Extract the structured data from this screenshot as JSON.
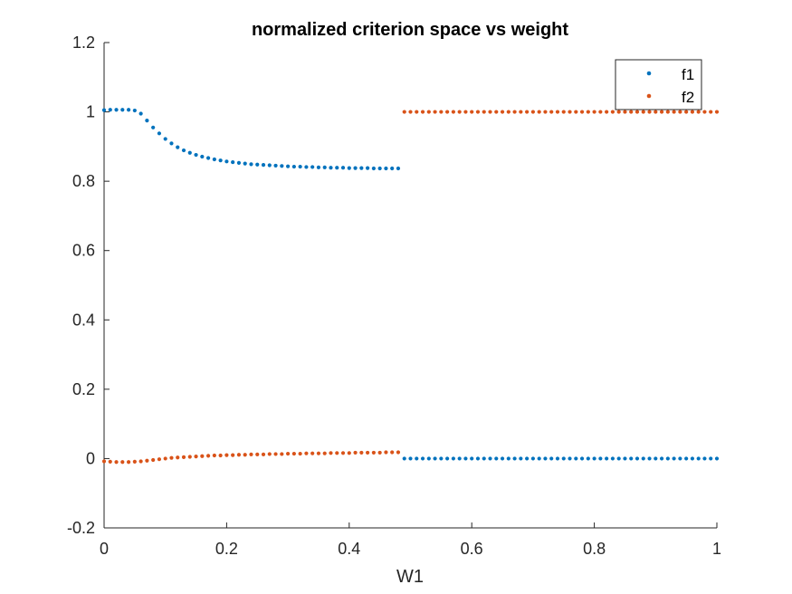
{
  "chart_data": {
    "type": "scatter",
    "title": "normalized criterion space vs weight",
    "xlabel": "W1",
    "ylabel": "",
    "xlim": [
      0,
      1
    ],
    "ylim": [
      -0.2,
      1.2
    ],
    "xticks": [
      "0",
      "0.2",
      "0.4",
      "0.6",
      "0.8",
      "1"
    ],
    "yticks": [
      "-0.2",
      "0",
      "0.2",
      "0.4",
      "0.6",
      "0.8",
      "1",
      "1.2"
    ],
    "grid": false,
    "legend_position": "top-right",
    "series": [
      {
        "name": "f1",
        "color": "#0072BD",
        "points": [
          [
            0.0,
            1.005
          ],
          [
            0.01,
            1.006
          ],
          [
            0.02,
            1.006
          ],
          [
            0.03,
            1.006
          ],
          [
            0.04,
            1.006
          ],
          [
            0.05,
            1.004
          ],
          [
            0.06,
            0.995
          ],
          [
            0.07,
            0.975
          ],
          [
            0.08,
            0.955
          ],
          [
            0.09,
            0.938
          ],
          [
            0.1,
            0.922
          ],
          [
            0.11,
            0.909
          ],
          [
            0.12,
            0.898
          ],
          [
            0.13,
            0.889
          ],
          [
            0.14,
            0.882
          ],
          [
            0.15,
            0.876
          ],
          [
            0.16,
            0.871
          ],
          [
            0.17,
            0.867
          ],
          [
            0.18,
            0.863
          ],
          [
            0.19,
            0.86
          ],
          [
            0.2,
            0.857
          ],
          [
            0.21,
            0.855
          ],
          [
            0.22,
            0.853
          ],
          [
            0.23,
            0.851
          ],
          [
            0.24,
            0.849
          ],
          [
            0.25,
            0.848
          ],
          [
            0.26,
            0.847
          ],
          [
            0.27,
            0.846
          ],
          [
            0.28,
            0.845
          ],
          [
            0.29,
            0.844
          ],
          [
            0.3,
            0.843
          ],
          [
            0.31,
            0.842
          ],
          [
            0.32,
            0.842
          ],
          [
            0.33,
            0.841
          ],
          [
            0.34,
            0.841
          ],
          [
            0.35,
            0.84
          ],
          [
            0.36,
            0.84
          ],
          [
            0.37,
            0.839
          ],
          [
            0.38,
            0.839
          ],
          [
            0.39,
            0.839
          ],
          [
            0.4,
            0.838
          ],
          [
            0.41,
            0.838
          ],
          [
            0.42,
            0.838
          ],
          [
            0.43,
            0.838
          ],
          [
            0.44,
            0.837
          ],
          [
            0.45,
            0.837
          ],
          [
            0.46,
            0.837
          ],
          [
            0.47,
            0.837
          ],
          [
            0.48,
            0.837
          ],
          [
            0.49,
            0.0
          ],
          [
            0.5,
            0.0
          ],
          [
            0.51,
            0.0
          ],
          [
            0.52,
            0.0
          ],
          [
            0.53,
            0.0
          ],
          [
            0.54,
            0.0
          ],
          [
            0.55,
            0.0
          ],
          [
            0.56,
            0.0
          ],
          [
            0.57,
            0.0
          ],
          [
            0.58,
            0.0
          ],
          [
            0.59,
            0.0
          ],
          [
            0.6,
            0.0
          ],
          [
            0.61,
            0.0
          ],
          [
            0.62,
            0.0
          ],
          [
            0.63,
            0.0
          ],
          [
            0.64,
            0.0
          ],
          [
            0.65,
            0.0
          ],
          [
            0.66,
            0.0
          ],
          [
            0.67,
            0.0
          ],
          [
            0.68,
            0.0
          ],
          [
            0.69,
            0.0
          ],
          [
            0.7,
            0.0
          ],
          [
            0.71,
            0.0
          ],
          [
            0.72,
            0.0
          ],
          [
            0.73,
            0.0
          ],
          [
            0.74,
            0.0
          ],
          [
            0.75,
            0.0
          ],
          [
            0.76,
            0.0
          ],
          [
            0.77,
            0.0
          ],
          [
            0.78,
            0.0
          ],
          [
            0.79,
            0.0
          ],
          [
            0.8,
            0.0
          ],
          [
            0.81,
            0.0
          ],
          [
            0.82,
            0.0
          ],
          [
            0.83,
            0.0
          ],
          [
            0.84,
            0.0
          ],
          [
            0.85,
            0.0
          ],
          [
            0.86,
            0.0
          ],
          [
            0.87,
            0.0
          ],
          [
            0.88,
            0.0
          ],
          [
            0.89,
            0.0
          ],
          [
            0.9,
            0.0
          ],
          [
            0.91,
            0.0
          ],
          [
            0.92,
            0.0
          ],
          [
            0.93,
            0.0
          ],
          [
            0.94,
            0.0
          ],
          [
            0.95,
            0.0
          ],
          [
            0.96,
            0.0
          ],
          [
            0.97,
            0.0
          ],
          [
            0.98,
            0.0
          ],
          [
            0.99,
            0.0
          ],
          [
            1.0,
            0.0
          ]
        ]
      },
      {
        "name": "f2",
        "color": "#D95319",
        "points": [
          [
            0.0,
            -0.008
          ],
          [
            0.01,
            -0.009
          ],
          [
            0.02,
            -0.01
          ],
          [
            0.03,
            -0.01
          ],
          [
            0.04,
            -0.01
          ],
          [
            0.05,
            -0.009
          ],
          [
            0.06,
            -0.008
          ],
          [
            0.07,
            -0.006
          ],
          [
            0.08,
            -0.004
          ],
          [
            0.09,
            -0.002
          ],
          [
            0.1,
            0.0
          ],
          [
            0.11,
            0.002
          ],
          [
            0.12,
            0.003
          ],
          [
            0.13,
            0.004
          ],
          [
            0.14,
            0.005
          ],
          [
            0.15,
            0.006
          ],
          [
            0.16,
            0.007
          ],
          [
            0.17,
            0.008
          ],
          [
            0.18,
            0.009
          ],
          [
            0.19,
            0.009
          ],
          [
            0.2,
            0.01
          ],
          [
            0.21,
            0.01
          ],
          [
            0.22,
            0.011
          ],
          [
            0.23,
            0.011
          ],
          [
            0.24,
            0.012
          ],
          [
            0.25,
            0.012
          ],
          [
            0.26,
            0.012
          ],
          [
            0.27,
            0.013
          ],
          [
            0.28,
            0.013
          ],
          [
            0.29,
            0.013
          ],
          [
            0.3,
            0.014
          ],
          [
            0.31,
            0.014
          ],
          [
            0.32,
            0.014
          ],
          [
            0.33,
            0.015
          ],
          [
            0.34,
            0.015
          ],
          [
            0.35,
            0.015
          ],
          [
            0.36,
            0.015
          ],
          [
            0.37,
            0.016
          ],
          [
            0.38,
            0.016
          ],
          [
            0.39,
            0.016
          ],
          [
            0.4,
            0.016
          ],
          [
            0.41,
            0.017
          ],
          [
            0.42,
            0.017
          ],
          [
            0.43,
            0.017
          ],
          [
            0.44,
            0.017
          ],
          [
            0.45,
            0.017
          ],
          [
            0.46,
            0.018
          ],
          [
            0.47,
            0.018
          ],
          [
            0.48,
            0.018
          ],
          [
            0.49,
            1.0
          ],
          [
            0.5,
            1.0
          ],
          [
            0.51,
            1.0
          ],
          [
            0.52,
            1.0
          ],
          [
            0.53,
            1.0
          ],
          [
            0.54,
            1.0
          ],
          [
            0.55,
            1.0
          ],
          [
            0.56,
            1.0
          ],
          [
            0.57,
            1.0
          ],
          [
            0.58,
            1.0
          ],
          [
            0.59,
            1.0
          ],
          [
            0.6,
            1.0
          ],
          [
            0.61,
            1.0
          ],
          [
            0.62,
            1.0
          ],
          [
            0.63,
            1.0
          ],
          [
            0.64,
            1.0
          ],
          [
            0.65,
            1.0
          ],
          [
            0.66,
            1.0
          ],
          [
            0.67,
            1.0
          ],
          [
            0.68,
            1.0
          ],
          [
            0.69,
            1.0
          ],
          [
            0.7,
            1.0
          ],
          [
            0.71,
            1.0
          ],
          [
            0.72,
            1.0
          ],
          [
            0.73,
            1.0
          ],
          [
            0.74,
            1.0
          ],
          [
            0.75,
            1.0
          ],
          [
            0.76,
            1.0
          ],
          [
            0.77,
            1.0
          ],
          [
            0.78,
            1.0
          ],
          [
            0.79,
            1.0
          ],
          [
            0.8,
            1.0
          ],
          [
            0.81,
            1.0
          ],
          [
            0.82,
            1.0
          ],
          [
            0.83,
            1.0
          ],
          [
            0.84,
            1.0
          ],
          [
            0.85,
            1.0
          ],
          [
            0.86,
            1.0
          ],
          [
            0.87,
            1.0
          ],
          [
            0.88,
            1.0
          ],
          [
            0.89,
            1.0
          ],
          [
            0.9,
            1.0
          ],
          [
            0.91,
            1.0
          ],
          [
            0.92,
            1.0
          ],
          [
            0.93,
            1.0
          ],
          [
            0.94,
            1.0
          ],
          [
            0.95,
            1.0
          ],
          [
            0.96,
            1.0
          ],
          [
            0.97,
            1.0
          ],
          [
            0.98,
            1.0
          ],
          [
            0.99,
            1.0
          ],
          [
            1.0,
            1.0
          ]
        ]
      }
    ]
  }
}
